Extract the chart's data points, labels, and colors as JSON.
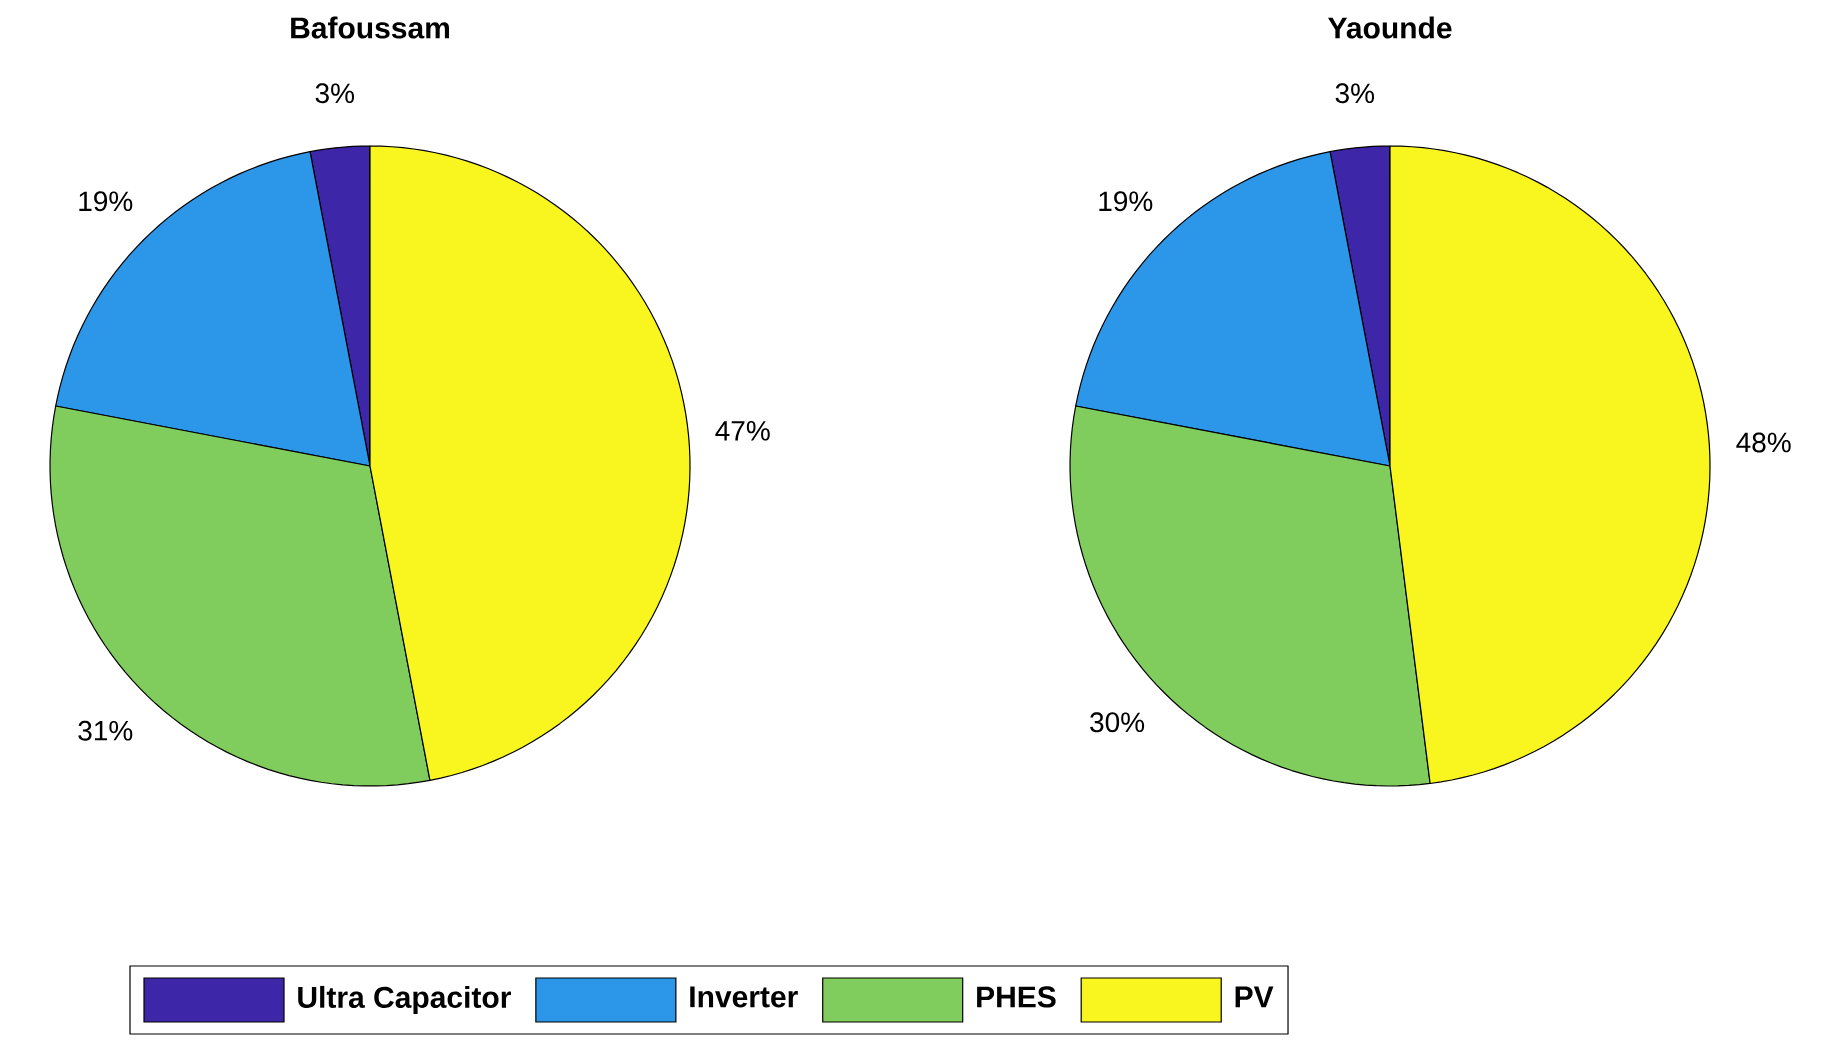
{
  "chart_data": [
    {
      "type": "pie",
      "title": "Bafoussam",
      "categories": [
        "Ultra Capacitor",
        "Inverter",
        "PHES",
        "PV"
      ],
      "values": [
        3,
        19,
        31,
        47
      ],
      "value_labels": [
        "3%",
        "19%",
        "31%",
        "47%"
      ],
      "colors": [
        "#3e26a8",
        "#2c97e8",
        "#80cc5c",
        "#f8f51f"
      ],
      "legend": "bottom"
    },
    {
      "type": "pie",
      "title": "Yaounde",
      "categories": [
        null,
        null,
        null,
        null
      ],
      "values": [
        3,
        19,
        30,
        48
      ],
      "value_labels": [
        "3%",
        "19%",
        "30%",
        "48%"
      ],
      "colors": [
        "#3e26a8",
        "#2c97e8",
        "#80cc5c",
        "#f8f51f"
      ]
    }
  ]
}
